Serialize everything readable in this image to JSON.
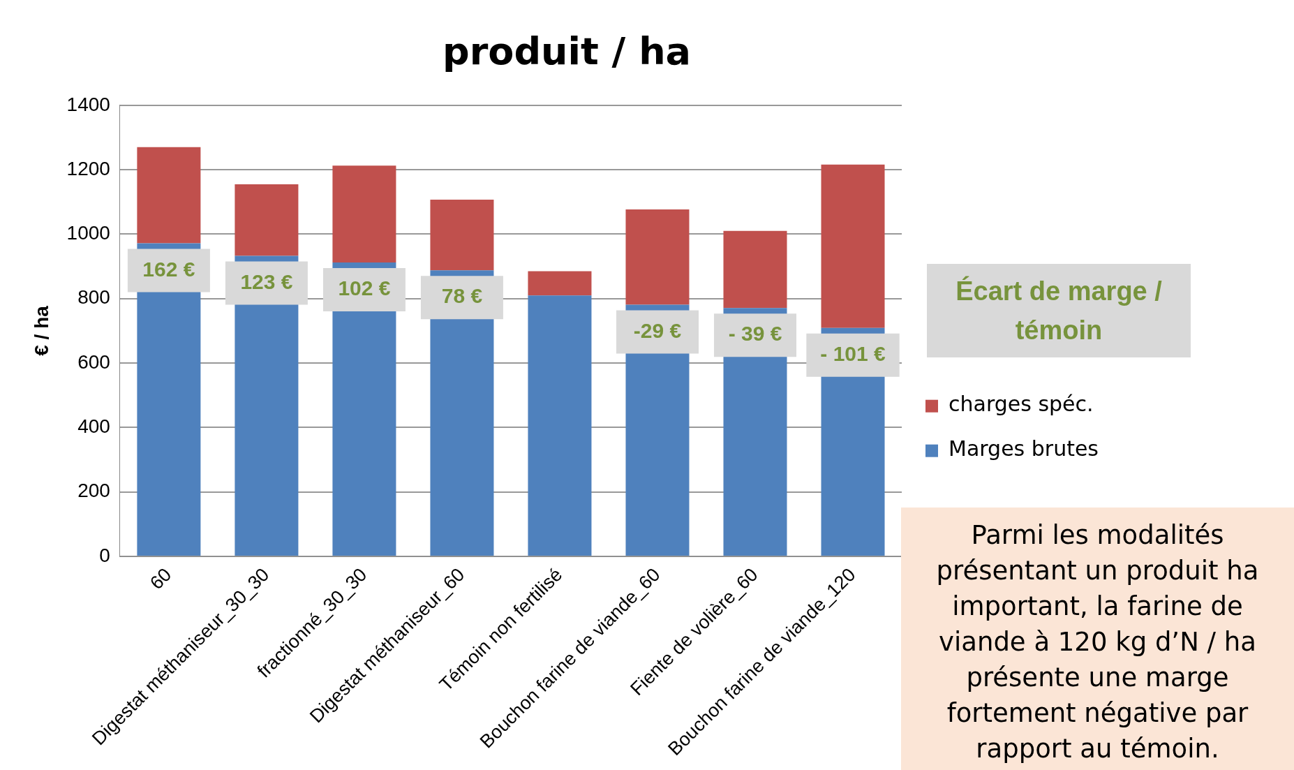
{
  "chart_data": {
    "type": "bar",
    "title": "produit / ha",
    "ylabel": "€ / ha",
    "stacked": true,
    "categories": [
      "60",
      "Digestat méthaniseur_30_30",
      "fractionné_30_30",
      "Digestat méthaniseur_60",
      "Témoin non fertilisé",
      "Bouchon farine de viande_60",
      "Fiente de volière_60",
      "Bouchon farine de viande_120"
    ],
    "series": [
      {
        "name": "Marges brutes",
        "color": "#4f81bd",
        "values": [
          972,
          933,
          912,
          888,
          810,
          781,
          771,
          709
        ]
      },
      {
        "name": "charges spéc.",
        "color": "#c0504d",
        "values": [
          298,
          222,
          301,
          219,
          75,
          296,
          239,
          507
        ]
      }
    ],
    "ylim": [
      0,
      1400
    ],
    "yticks": [
      0,
      200,
      400,
      600,
      800,
      1000,
      1200,
      1400
    ],
    "grid": "y",
    "legend": "right",
    "annotations": [
      {
        "text": "162 €",
        "x": "60",
        "y": 972
      },
      {
        "text": "123 €",
        "x": "Digestat méthaniseur_30_30",
        "y": 933
      },
      {
        "text": "102 €",
        "x": "fractionné_30_30",
        "y": 912
      },
      {
        "text": "78 €",
        "x": "Digestat méthaniseur_60",
        "y": 888
      },
      {
        "text": "-29 €",
        "x": "Bouchon farine de viande_60",
        "y": 781
      },
      {
        "text": "- 39 €",
        "x": "Fiente de volière_60",
        "y": 771
      },
      {
        "text": "- 101 €",
        "x": "Bouchon farine de viande_120",
        "y": 709
      },
      "Écart de marge / témoin",
      "Parmi les modalités présentant un produit ha important, la farine de viande à 120 kg d’N / ha présente une marge fortement négative par rapport au témoin."
    ]
  }
}
